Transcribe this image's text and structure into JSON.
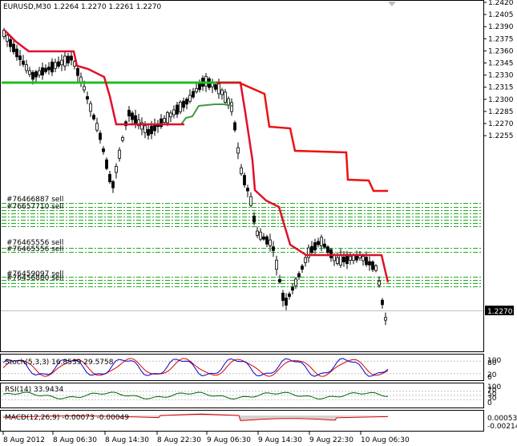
{
  "main": {
    "title": "EURUSD,M30  1.2264 1.2270 1.2261 1.2270",
    "price_ticks": [
      "1.2420",
      "1.2405",
      "1.2390",
      "1.2375",
      "1.2360",
      "1.2345",
      "1.2330",
      "1.2315",
      "1.2300",
      "1.2285",
      "1.2270",
      "1.2255"
    ],
    "current_price": "1.2270",
    "order_labels": [
      "#76466887 sell",
      "#76657710 sell",
      "#76465556 sell",
      "#76459097 sell",
      "#76456880 sell"
    ]
  },
  "stoch": {
    "title": "Stoch(5,3,3) 16.8539 29.5758",
    "ticks": [
      "100",
      "80",
      "20",
      "0"
    ]
  },
  "rsi": {
    "title": "RSI(14) 33.9434",
    "ticks": [
      "100",
      "70",
      "50",
      "30",
      "0"
    ]
  },
  "macd": {
    "title": "MACD(12,26,9) -0.00073 -0.00049",
    "ticks": [
      "0.00053",
      "-0.00214"
    ]
  },
  "time_axis": [
    "8 Aug 2012",
    "8 Aug 06:30",
    "8 Aug 14:30",
    "8 Aug 22:30",
    "9 Aug 06:30",
    "9 Aug 14:30",
    "9 Aug 22:30",
    "10 Aug 06:30"
  ],
  "colors": {
    "background": "#ffffff",
    "candles": "#000000",
    "stop_line": "#e0102a",
    "support_line": "#22bb22",
    "order_lines": "#22aa22",
    "stoch_main": "#0000cc",
    "stoch_signal": "#dd0000",
    "rsi": "#006600",
    "macd_hist": "#c0c0c0",
    "macd_signal": "#dd0000"
  }
}
